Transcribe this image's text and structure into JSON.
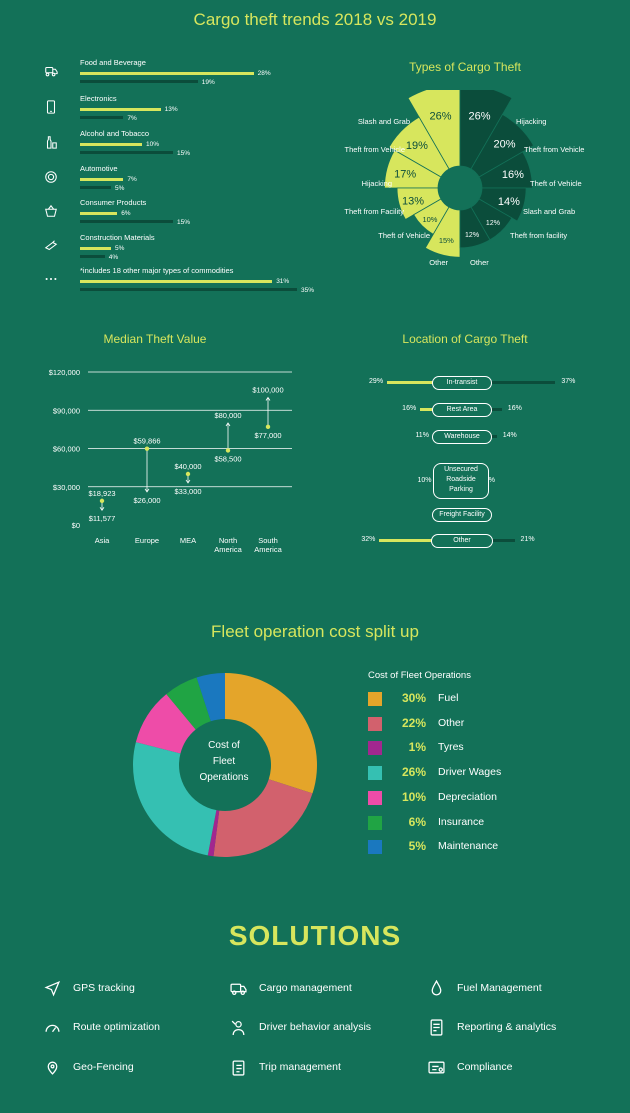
{
  "header": {
    "title": "Cargo theft trends 2018 vs 2019"
  },
  "commodities": {
    "items": [
      {
        "label": "Food and Beverage",
        "v2019": 28,
        "v2018": 19,
        "p2019": "28%",
        "p2018": "19%",
        "icon": "food-delivery-icon"
      },
      {
        "label": "Electronics",
        "v2019": 13,
        "v2018": 7,
        "p2019": "13%",
        "p2018": "7%",
        "icon": "smartphone-icon"
      },
      {
        "label": "Alcohol and Tobacco",
        "v2019": 10,
        "v2018": 15,
        "p2019": "10%",
        "p2018": "15%",
        "icon": "bottles-icon"
      },
      {
        "label": "Automotive",
        "v2019": 7,
        "v2018": 5,
        "p2019": "7%",
        "p2018": "5%",
        "icon": "tire-icon"
      },
      {
        "label": "Consumer Products",
        "v2019": 6,
        "v2018": 15,
        "p2019": "6%",
        "p2018": "15%",
        "icon": "basket-icon"
      },
      {
        "label": "Construction Materials",
        "v2019": 5,
        "v2018": 4,
        "p2019": "5%",
        "p2018": "4%",
        "icon": "trowel-icon"
      },
      {
        "label": "*includes 18 other major types of commodities",
        "v2019": 31,
        "v2018": 35,
        "p2019": "31%",
        "p2018": "35%",
        "icon": "ellipsis-icon"
      }
    ]
  },
  "types": {
    "title": "Types of Cargo Theft",
    "left": [
      {
        "label": "Slash and Grab",
        "pct": "26%",
        "v": 26
      },
      {
        "label": "Theft from Vehicle",
        "pct": "19%",
        "v": 19
      },
      {
        "label": "Hijacking",
        "pct": "17%",
        "v": 17
      },
      {
        "label": "Theft from Facility",
        "pct": "13%",
        "v": 13
      },
      {
        "label": "Theft of Vehicle",
        "pct": "10%",
        "v": 10
      },
      {
        "label": "Other",
        "pct": "15%",
        "v": 15
      }
    ],
    "right": [
      {
        "label": "Hijacking",
        "pct": "26%",
        "v": 26
      },
      {
        "label": "Theft from Vehicle",
        "pct": "20%",
        "v": 20
      },
      {
        "label": "Theft of Vehicle",
        "pct": "16%",
        "v": 16
      },
      {
        "label": "Slash and Grab",
        "pct": "14%",
        "v": 14
      },
      {
        "label": "Theft from facility",
        "pct": "12%",
        "v": 12
      },
      {
        "label": "Other",
        "pct": "12%",
        "v": 12
      }
    ]
  },
  "chart_data": [
    {
      "type": "scatter",
      "title": "Median Theft Value",
      "categories": [
        "Asia",
        "Europe",
        "MEA",
        "North America",
        "South America"
      ],
      "ylim": [
        0,
        120000
      ],
      "yticks": [
        "$0",
        "$30,000",
        "$60,000",
        "$90,000",
        "$120,000"
      ],
      "series": [
        {
          "values": [
            18923,
            59866,
            40000,
            58500,
            77000
          ]
        },
        {
          "values": [
            11577,
            26000,
            33000,
            80000,
            100000
          ]
        }
      ],
      "labels": [
        [
          "$18,923",
          "$11,577"
        ],
        [
          "$59,866",
          "$26,000"
        ],
        [
          "$40,000",
          "$33,000"
        ],
        [
          "$58,500",
          "$80,000"
        ],
        [
          "$77,000",
          "$100,000"
        ]
      ]
    },
    {
      "type": "bar",
      "title": "Location of Cargo Theft",
      "categories": [
        "In-transist",
        "Rest Area",
        "Warehouse",
        "Unsecured Roadside Parking",
        "Freight Facility",
        "Other"
      ],
      "series": [
        {
          "values": [
            29,
            16,
            11,
            10,
            2,
            32
          ],
          "labels": [
            "29%",
            "16%",
            "11%",
            "10%",
            "2%",
            "32%"
          ]
        },
        {
          "values": [
            37,
            16,
            14,
            7,
            5,
            21
          ],
          "labels": [
            "37%",
            "16%",
            "14%",
            "7%",
            "5%",
            "21%"
          ]
        }
      ]
    },
    {
      "type": "pie",
      "title": "Cost of Fleet Operations",
      "categories": [
        "Fuel",
        "Other",
        "Tyres",
        "Driver Wages",
        "Depreciation",
        "Insurance",
        "Maintenance"
      ],
      "values": [
        30,
        22,
        1,
        26,
        10,
        6,
        5
      ],
      "labels": [
        "30%",
        "22%",
        "1%",
        "26%",
        "10%",
        "6%",
        "5%"
      ],
      "colors": [
        "#e4a52a",
        "#d2616d",
        "#a2278f",
        "#35c0b2",
        "#ee4ca8",
        "#20a444",
        "#1a78bf"
      ]
    }
  ],
  "median": {
    "title": "Median Theft Value"
  },
  "location": {
    "title": "Location of Cargo Theft"
  },
  "fleet": {
    "title": "Fleet operation cost split up",
    "center": [
      "Cost of",
      "Fleet",
      "Operations"
    ],
    "legend_title": "Cost of Fleet Operations"
  },
  "solutions": {
    "title": "SOLUTIONS",
    "items": [
      {
        "label": "GPS tracking",
        "icon": "navigation-arrow-icon"
      },
      {
        "label": "Cargo management",
        "icon": "truck-icon"
      },
      {
        "label": "Fuel Management",
        "icon": "fuel-drop-icon"
      },
      {
        "label": "Route optimization",
        "icon": "speedometer-icon"
      },
      {
        "label": "Driver behavior analysis",
        "icon": "driver-icon"
      },
      {
        "label": "Reporting & analytics",
        "icon": "report-icon"
      },
      {
        "label": "Geo-Fencing",
        "icon": "geofence-pin-icon"
      },
      {
        "label": "Trip management",
        "icon": "clipboard-icon"
      },
      {
        "label": "Compliance",
        "icon": "certificate-icon"
      }
    ]
  },
  "colors": {
    "background": "#137158",
    "accent": "#d7e65d",
    "dark_bar": "#0b4d3b"
  }
}
